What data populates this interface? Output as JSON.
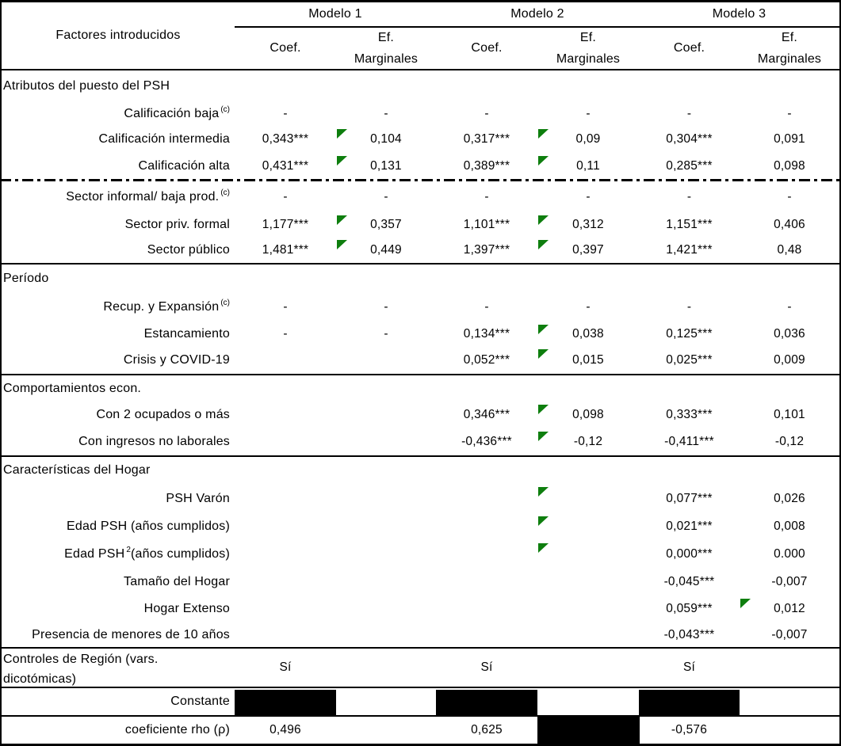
{
  "accent_colors": {
    "flag_green": "#0e7e0e",
    "redaction_black": "#000000"
  },
  "table": {
    "corner_label": "Factores introducidos",
    "models": [
      {
        "name": "Modelo 1",
        "coef_header": "Coef.",
        "ef_header_line1": "Ef.",
        "ef_header_line2": "Marginales"
      },
      {
        "name": "Modelo 2",
        "coef_header": "Coef.",
        "ef_header_line1": "Ef.",
        "ef_header_line2": "Marginales"
      },
      {
        "name": "Modelo 3",
        "coef_header": "Coef.",
        "ef_header_line1": "Ef.",
        "ef_header_line2": "Marginales"
      }
    ],
    "rows": [
      {
        "type": "section",
        "label": "Atributos del puesto del PSH"
      },
      {
        "type": "data",
        "label": "Calificación baja",
        "sup": "(c)",
        "cells": [
          "-",
          "-",
          "-",
          "-",
          "-",
          "-"
        ],
        "flags": []
      },
      {
        "type": "data",
        "label": "Calificación intermedia",
        "cells": [
          "0,343***",
          "0,104",
          "0,317***",
          "0,09",
          "0,304***",
          "0,091"
        ],
        "flags": [
          1,
          3
        ]
      },
      {
        "type": "data",
        "label": "Calificación alta",
        "cells": [
          "0,431***",
          "0,131",
          "0,389***",
          "0,11",
          "0,285***",
          "0,098"
        ],
        "flags": [
          1,
          3
        ]
      },
      {
        "type": "data",
        "label": "Sector informal/ baja prod.",
        "sup": "(c)",
        "cells": [
          "-",
          "-",
          "-",
          "-",
          "-",
          "-"
        ],
        "flags": []
      },
      {
        "type": "data",
        "label": "Sector priv. formal",
        "cells": [
          "1,177***",
          "0,357",
          "1,101***",
          "0,312",
          "1,151***",
          "0,406"
        ],
        "flags": [
          1,
          3
        ]
      },
      {
        "type": "data",
        "label": "Sector público",
        "cells": [
          "1,481***",
          "0,449",
          "1,397***",
          "0,397",
          "1,421***",
          "0,48"
        ],
        "flags": [
          1,
          3
        ]
      },
      {
        "type": "section",
        "label": "Período"
      },
      {
        "type": "data",
        "label": "Recup. y Expansión",
        "sup": "(c)",
        "cells": [
          "-",
          "-",
          "-",
          "-",
          "-",
          "-"
        ],
        "flags": []
      },
      {
        "type": "data",
        "label": "Estancamiento",
        "cells": [
          "-",
          "-",
          "0,134***",
          "0,038",
          "0,125***",
          "0,036"
        ],
        "flags": [
          3
        ]
      },
      {
        "type": "data",
        "label": "Crisis y COVID-19",
        "cells": [
          "",
          "",
          "0,052***",
          "0,015",
          "0,025***",
          "0,009"
        ],
        "flags": [
          3
        ]
      },
      {
        "type": "section",
        "label": "Comportamientos econ."
      },
      {
        "type": "data",
        "label": "Con 2 ocupados o más",
        "cells": [
          "",
          "",
          "0,346***",
          "0,098",
          "0,333***",
          "0,101"
        ],
        "flags": [
          3
        ]
      },
      {
        "type": "data",
        "label": "Con ingresos no laborales",
        "cells": [
          "",
          "",
          "-0,436***",
          "-0,12",
          "-0,411***",
          "-0,12"
        ],
        "flags": [
          3
        ]
      },
      {
        "type": "section",
        "label": "Características del Hogar"
      },
      {
        "type": "data",
        "label": "PSH Varón",
        "cells": [
          "",
          "",
          "",
          "",
          "0,077***",
          "0,026"
        ],
        "flags": [
          3
        ]
      },
      {
        "type": "data",
        "label": "Edad PSH (años cumplidos)",
        "cells": [
          "",
          "",
          "",
          "",
          "0,021***",
          "0,008"
        ],
        "flags": [
          3
        ]
      },
      {
        "type": "data",
        "label": "Edad PSH",
        "sup": "2",
        "label_post": " (años cumplidos)",
        "cells": [
          "",
          "",
          "",
          "",
          "0,000***",
          "0.000"
        ],
        "flags": [
          3
        ]
      },
      {
        "type": "data",
        "label": "Tamaño del Hogar",
        "cells": [
          "",
          "",
          "",
          "",
          "-0,045***",
          "-0,007"
        ],
        "flags": []
      },
      {
        "type": "data",
        "label": "Hogar Extenso",
        "cells": [
          "",
          "",
          "",
          "",
          "0,059***",
          "0,012"
        ],
        "flags": [
          5
        ]
      },
      {
        "type": "data",
        "label": "Presencia de menores de 10 años",
        "cells": [
          "",
          "",
          "",
          "",
          "-0,043***",
          "-0,007"
        ],
        "flags": []
      },
      {
        "type": "controls",
        "label_line1": "Controles de Región (vars.",
        "label_line2": "dicotómicas)",
        "values": [
          "Sí",
          "Sí",
          "Sí"
        ]
      },
      {
        "type": "constante",
        "label": "Constante",
        "redacted_cells": [
          0,
          2,
          4
        ]
      },
      {
        "type": "rho",
        "label": "coeficiente rho (ρ)",
        "cells": [
          "0,496",
          "",
          "0,625",
          "",
          "-0,576",
          ""
        ],
        "redacted_cells": [
          3
        ]
      }
    ]
  }
}
